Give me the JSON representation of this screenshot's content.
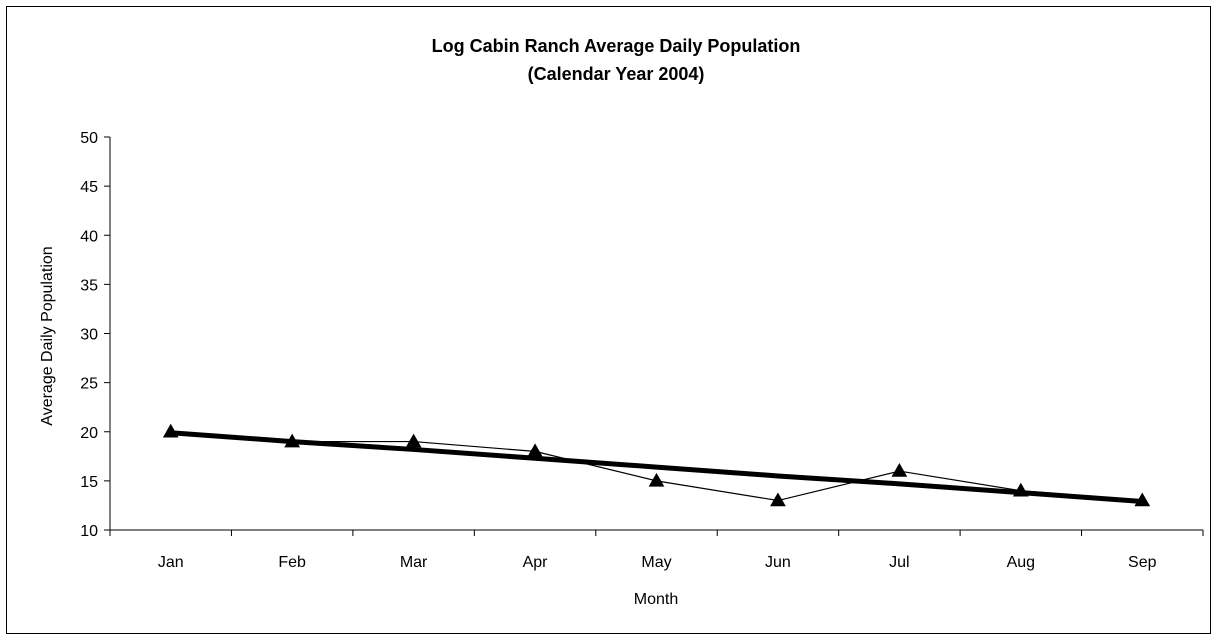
{
  "chart_data": {
    "type": "line",
    "title": "Log Cabin Ranch Average Daily Population",
    "subtitle": "(Calendar Year 2004)",
    "xlabel": "Month",
    "ylabel": "Average Daily Population",
    "categories": [
      "Jan",
      "Feb",
      "Mar",
      "Apr",
      "May",
      "Jun",
      "Jul",
      "Aug",
      "Sep"
    ],
    "ylim": [
      10,
      50
    ],
    "yticks": [
      10,
      15,
      20,
      25,
      30,
      35,
      40,
      45,
      50
    ],
    "grid": false,
    "legend": "none",
    "series": [
      {
        "values": [
          20,
          19,
          19,
          18,
          15,
          13,
          16,
          14,
          13
        ],
        "marker": "triangle",
        "color": "#000000"
      },
      {
        "trendline": "linear",
        "values": [
          19.9,
          19.0,
          18.2,
          17.3,
          16.4,
          15.5,
          14.7,
          13.8,
          12.9
        ],
        "color": "#000000"
      }
    ]
  }
}
